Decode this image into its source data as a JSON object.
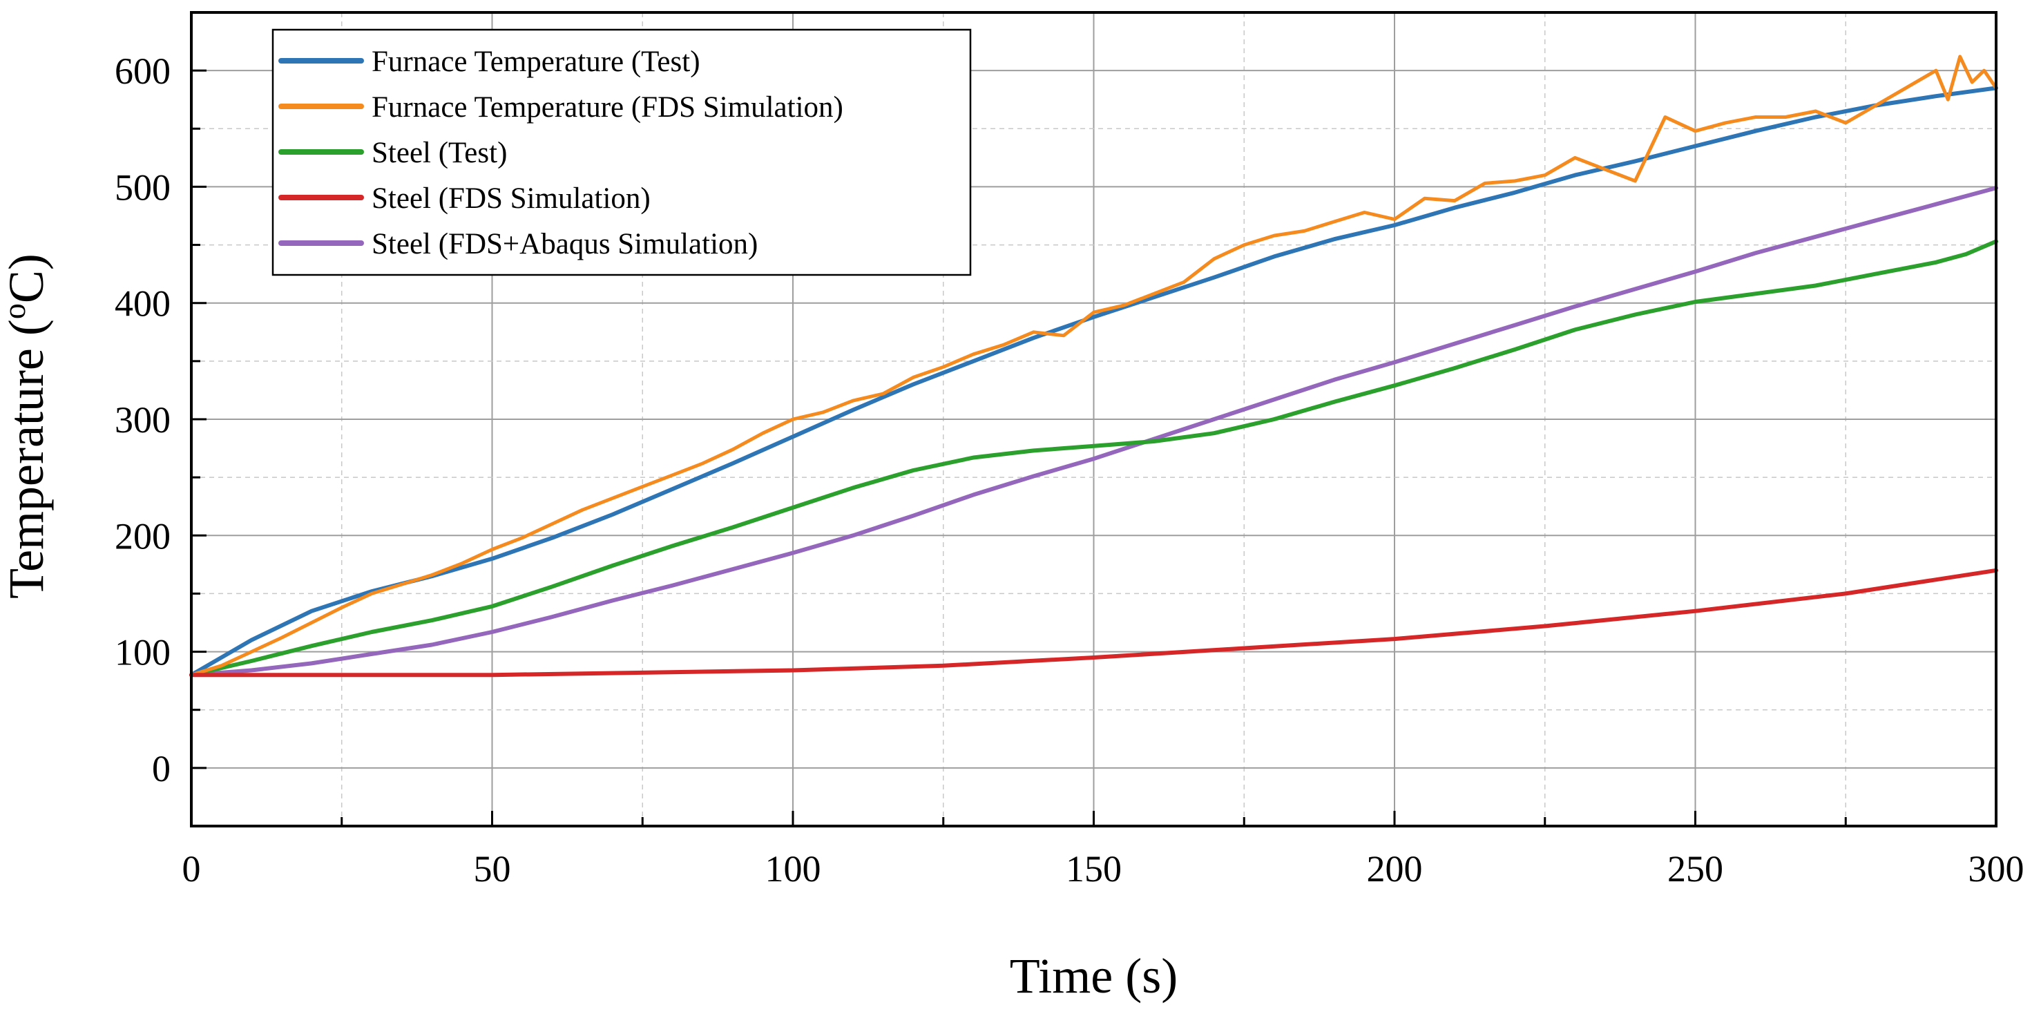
{
  "chart_data": {
    "type": "line",
    "title": "",
    "xlabel": "Time (s)",
    "ylabel": "Temperature (°C)",
    "ylabel_unit_superscript": "o",
    "xlim": [
      0,
      300
    ],
    "ylim": [
      -50,
      650
    ],
    "x_ticks": [
      0,
      50,
      100,
      150,
      200,
      250,
      300
    ],
    "y_ticks": [
      0,
      100,
      200,
      300,
      400,
      500,
      600
    ],
    "grid": true,
    "legend_position": "top-left",
    "series": [
      {
        "name": "Furnace Temperature (Test)",
        "color": "#2e75b6",
        "x": [
          0,
          10,
          20,
          30,
          40,
          50,
          60,
          70,
          80,
          90,
          100,
          110,
          120,
          130,
          140,
          150,
          160,
          170,
          180,
          190,
          200,
          210,
          220,
          230,
          240,
          250,
          260,
          270,
          280,
          290,
          300
        ],
        "values": [
          80,
          110,
          135,
          152,
          165,
          180,
          198,
          218,
          240,
          262,
          285,
          308,
          330,
          350,
          370,
          388,
          405,
          422,
          440,
          455,
          467,
          482,
          495,
          510,
          522,
          535,
          548,
          560,
          570,
          578,
          585
        ]
      },
      {
        "name": "Furnace Temperature (FDS Simulation)",
        "color": "#f58b1f",
        "x": [
          0,
          5,
          10,
          15,
          20,
          25,
          30,
          35,
          40,
          45,
          50,
          55,
          60,
          65,
          70,
          75,
          80,
          85,
          90,
          95,
          100,
          105,
          110,
          115,
          120,
          125,
          130,
          135,
          140,
          145,
          150,
          155,
          160,
          165,
          170,
          175,
          180,
          185,
          190,
          195,
          200,
          205,
          210,
          215,
          220,
          225,
          230,
          235,
          240,
          245,
          250,
          255,
          260,
          265,
          270,
          275,
          280,
          285,
          290,
          292,
          294,
          296,
          298,
          300
        ],
        "values": [
          80,
          88,
          100,
          112,
          125,
          138,
          150,
          158,
          166,
          176,
          188,
          198,
          210,
          222,
          232,
          242,
          252,
          262,
          274,
          288,
          300,
          306,
          316,
          322,
          336,
          345,
          356,
          364,
          375,
          372,
          392,
          398,
          408,
          418,
          438,
          450,
          458,
          462,
          470,
          478,
          472,
          490,
          488,
          503,
          505,
          510,
          525,
          515,
          505,
          560,
          548,
          555,
          560,
          560,
          565,
          555,
          570,
          585,
          600,
          575,
          612,
          590,
          600,
          585
        ]
      },
      {
        "name": "Steel (Test)",
        "color": "#2ca02c",
        "x": [
          0,
          10,
          20,
          30,
          40,
          50,
          60,
          70,
          80,
          90,
          100,
          110,
          120,
          130,
          140,
          150,
          160,
          170,
          180,
          190,
          200,
          210,
          220,
          230,
          240,
          250,
          260,
          270,
          280,
          290,
          295,
          300
        ],
        "values": [
          80,
          92,
          105,
          117,
          127,
          139,
          156,
          174,
          191,
          207,
          224,
          241,
          256,
          267,
          273,
          277,
          281,
          288,
          300,
          315,
          329,
          344,
          360,
          377,
          390,
          401,
          408,
          415,
          425,
          435,
          442,
          453
        ]
      },
      {
        "name": "Steel (FDS Simulation)",
        "color": "#d62728",
        "x": [
          0,
          25,
          50,
          75,
          100,
          125,
          150,
          175,
          200,
          225,
          250,
          275,
          300
        ],
        "values": [
          80,
          80,
          80,
          82,
          84,
          88,
          95,
          103,
          111,
          122,
          135,
          150,
          170
        ]
      },
      {
        "name": "Steel (FDS+Abaqus Simulation)",
        "color": "#9467bd",
        "x": [
          0,
          10,
          20,
          30,
          40,
          50,
          60,
          70,
          80,
          90,
          100,
          110,
          120,
          130,
          140,
          150,
          160,
          170,
          180,
          190,
          200,
          210,
          220,
          230,
          240,
          250,
          260,
          270,
          280,
          290,
          300
        ],
        "values": [
          80,
          84,
          90,
          98,
          106,
          117,
          130,
          144,
          157,
          171,
          185,
          200,
          217,
          235,
          251,
          266,
          283,
          300,
          317,
          334,
          349,
          365,
          381,
          397,
          412,
          427,
          443,
          457,
          471,
          485,
          499
        ]
      }
    ]
  }
}
